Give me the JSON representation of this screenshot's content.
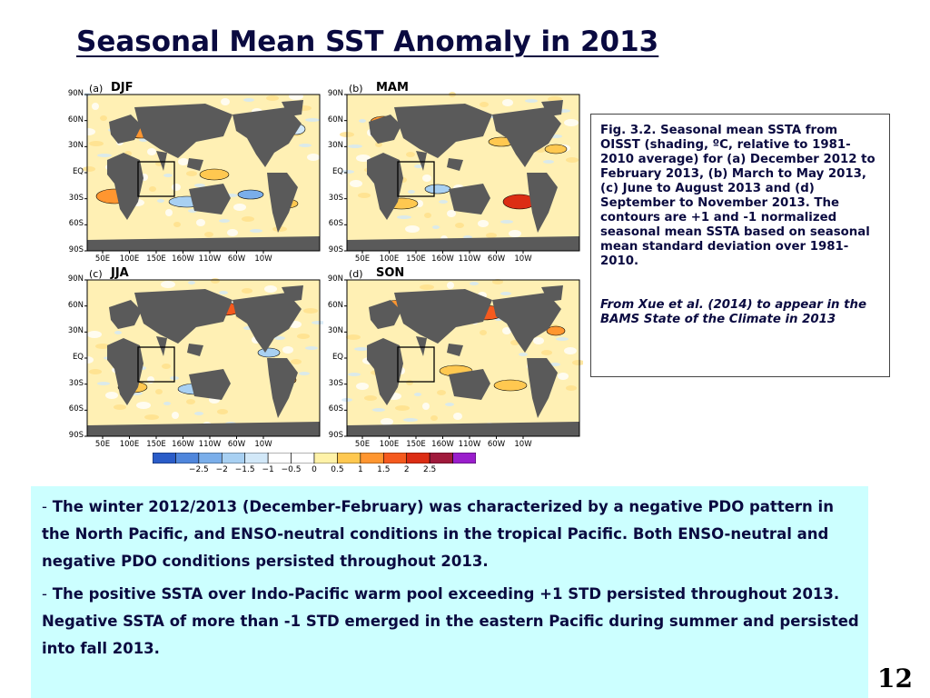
{
  "slide": {
    "title": "Seasonal Mean SST Anomaly in 2013",
    "page_number": "12"
  },
  "panels": [
    {
      "letter": "(a)",
      "season": "DJF"
    },
    {
      "letter": "(b)",
      "season": "MAM"
    },
    {
      "letter": "(c)",
      "season": "JJA"
    },
    {
      "letter": "(d)",
      "season": "SON"
    }
  ],
  "map_axes": {
    "lat_labels": [
      "90N",
      "60N",
      "30N",
      "EQ",
      "30S",
      "60S",
      "90S"
    ],
    "lon_labels": [
      "50E",
      "100E",
      "150E",
      "160W",
      "110W",
      "60W",
      "10W"
    ]
  },
  "colorbar": {
    "labels": [
      "−2.5",
      "−2",
      "−1.5",
      "−1",
      "−0.5",
      "0",
      "0.5",
      "1",
      "1.5",
      "2",
      "2.5"
    ],
    "colors": [
      "#2a5cc8",
      "#4f86dc",
      "#7aaeea",
      "#a8d0f2",
      "#d2e8f8",
      "#ffffff",
      "#ffffff",
      "#fff2a8",
      "#ffc850",
      "#ff9630",
      "#f55a1e",
      "#dc2d14",
      "#a01a3c",
      "#9a1ecc"
    ]
  },
  "caption": {
    "text": "Fig. 3.2.  Seasonal mean SSTA from OISST (shading, ºC, relative to 1981-2010 average) for (a) December 2012 to February 2013, (b) March to May 2013, (c) June to August 2013 and (d) September to November 2013.  The contours are +1 and -1 normalized seasonal mean SSTA based on seasonal mean standard deviation over 1981-2010.",
    "citation": "From Xue et al. (2014) to appear in the BAMS State of the Climate in 2013"
  },
  "notes": {
    "dash": "-",
    "items": [
      "The winter 2012/2013 (December-February) was characterized by a negative PDO pattern in the North Pacific, and ENSO-neutral conditions in the tropical Pacific. Both ENSO-neutral and negative PDO conditions persisted throughout 2013.",
      "The positive SSTA over Indo-Pacific warm pool exceeding +1 STD persisted throughout 2013. Negative SSTA of more than -1 STD emerged in the eastern Pacific during summer and persisted into fall 2013."
    ]
  },
  "colors": {
    "land": "#5a5a5a",
    "ocean_base": "#fff0b4",
    "title": "#0a0a40",
    "notes_bg": "#ccffff"
  }
}
